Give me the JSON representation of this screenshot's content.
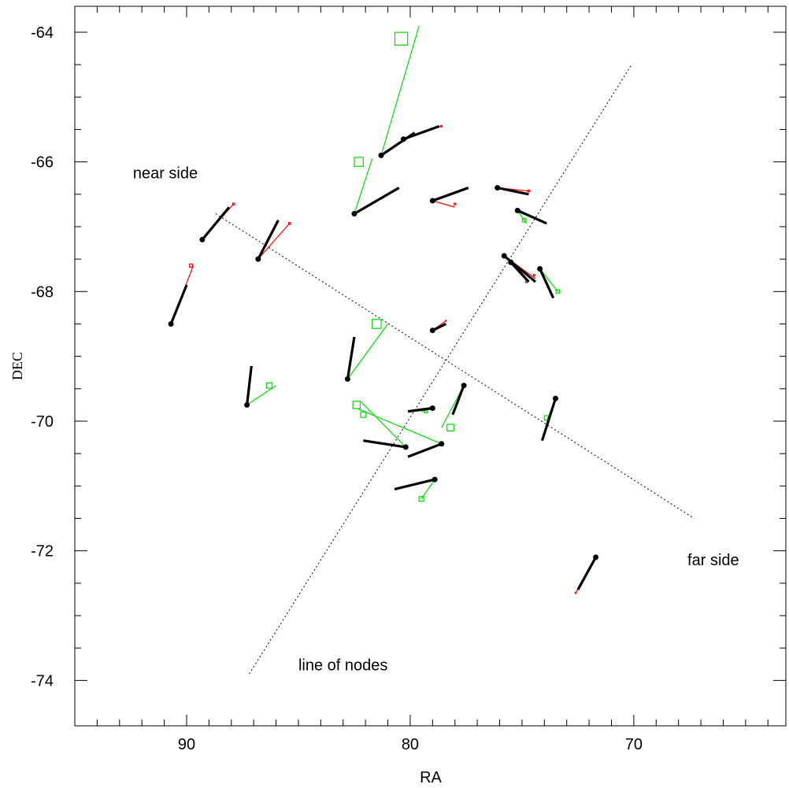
{
  "chart_data": {
    "type": "scatter",
    "title": "",
    "xlabel": "RA",
    "ylabel": "DEC",
    "xlim": [
      95.0,
      63.2
    ],
    "ylim": [
      -74.7,
      -63.6
    ],
    "x_ticks": [
      90,
      80,
      70
    ],
    "x_tick_labels": [
      "90",
      "80",
      "70"
    ],
    "y_ticks": [
      -64,
      -66,
      -68,
      -70,
      -72,
      -74
    ],
    "y_tick_labels": [
      "-64",
      "-66",
      "-68",
      "-70",
      "-72",
      "-74"
    ],
    "grid": false,
    "colors": {
      "vector": "#000000",
      "red": "#ff0000",
      "green": "#00dd00",
      "dotted": "#000000"
    },
    "annotations": [
      {
        "text": "near side",
        "x": 92.4,
        "y": -66.17
      },
      {
        "text": "far side",
        "x": 67.6,
        "y": -72.14
      },
      {
        "text": "line of nodes",
        "x": 85.0,
        "y": -73.76
      }
    ],
    "lines": [
      {
        "name": "line of nodes",
        "points": [
          [
            87.2,
            -73.9
          ],
          [
            70.1,
            -64.5
          ]
        ]
      },
      {
        "name": "perpendicular",
        "points": [
          [
            88.7,
            -66.8
          ],
          [
            67.3,
            -71.5
          ]
        ]
      }
    ],
    "objects": [
      {
        "pos": [
          90.7,
          -68.5
        ],
        "vec": [
          90.0,
          -67.9
        ],
        "red": {
          "end": [
            89.7,
            -67.6
          ],
          "box": [
            89.8,
            -67.6
          ],
          "size": 0.14
        }
      },
      {
        "pos": [
          89.3,
          -67.2
        ],
        "vec": [
          88.1,
          -66.7
        ],
        "red": {
          "end": [
            87.9,
            -66.65
          ],
          "box": [
            87.9,
            -66.65
          ],
          "size": 0.08
        }
      },
      {
        "pos": [
          86.8,
          -67.5
        ],
        "vec": [
          85.9,
          -66.9
        ],
        "red": {
          "end": [
            85.4,
            -66.95
          ],
          "box": [
            85.4,
            -66.95
          ],
          "size": 0.08
        }
      },
      {
        "pos": [
          87.3,
          -69.75
        ],
        "vec": [
          87.1,
          -69.15
        ],
        "green": {
          "end": [
            86.0,
            -69.45
          ],
          "box": [
            86.3,
            -69.45
          ],
          "size": 0.24
        }
      },
      {
        "pos": [
          82.8,
          -69.35
        ],
        "vec": [
          82.5,
          -68.7
        ],
        "green": {
          "end": [
            81.0,
            -68.5
          ],
          "box": [
            81.5,
            -68.5
          ],
          "size": 0.4
        }
      },
      {
        "pos": [
          82.5,
          -66.8
        ],
        "vec": [
          80.5,
          -66.4
        ],
        "green": {
          "end": [
            81.7,
            -65.95
          ],
          "box": [
            82.3,
            -66.0
          ],
          "size": 0.4
        }
      },
      {
        "pos": [
          81.3,
          -65.9
        ],
        "vec": [
          79.8,
          -65.55
        ],
        "green": {
          "end": [
            79.6,
            -63.9
          ],
          "box": [
            80.4,
            -64.1
          ],
          "size": 0.57
        }
      },
      {
        "pos": [
          80.3,
          -65.65
        ],
        "vec": [
          78.7,
          -65.45
        ],
        "red": {
          "end": [
            78.6,
            -65.45
          ],
          "box": [
            78.6,
            -65.45
          ],
          "size": 0.06
        }
      },
      {
        "pos": [
          79.0,
          -66.6
        ],
        "vec": [
          77.4,
          -66.4
        ],
        "red": {
          "end": [
            78.0,
            -66.7
          ],
          "box": [
            78.0,
            -66.65
          ],
          "size": 0.07
        }
      },
      {
        "pos": [
          79.0,
          -68.6
        ],
        "vec": [
          78.4,
          -68.5
        ],
        "red": {
          "end": [
            78.4,
            -68.45
          ],
          "box": [
            78.4,
            -68.45
          ],
          "size": 0.03
        }
      },
      {
        "pos": [
          80.2,
          -70.4
        ],
        "vec": [
          82.1,
          -70.3
        ],
        "green": {
          "end": [
            82.2,
            -69.7
          ],
          "box": [
            82.1,
            -69.9
          ],
          "size": 0.24
        }
      },
      {
        "pos": [
          78.6,
          -70.35
        ],
        "vec": [
          80.1,
          -70.55
        ],
        "green": {
          "end": [
            82.4,
            -69.8
          ],
          "box": [
            82.4,
            -69.75
          ],
          "size": 0.33
        }
      },
      {
        "pos": [
          79.0,
          -69.8
        ],
        "vec": [
          80.1,
          -69.85
        ],
        "green": {
          "end": [
            79.5,
            -69.85
          ],
          "box": [
            79.3,
            -69.85
          ],
          "size": 0.13
        }
      },
      {
        "pos": [
          77.6,
          -69.45
        ],
        "vec": [
          78.1,
          -69.9
        ],
        "green": {
          "end": [
            78.6,
            -70.1
          ],
          "box": [
            78.2,
            -70.1
          ],
          "size": 0.3
        }
      },
      {
        "pos": [
          78.9,
          -70.9
        ],
        "vec": [
          80.7,
          -71.05
        ],
        "green": {
          "end": [
            79.5,
            -71.2
          ],
          "box": [
            79.5,
            -71.2
          ],
          "size": 0.21
        }
      },
      {
        "pos": [
          76.1,
          -66.4
        ],
        "vec": [
          74.7,
          -66.5
        ],
        "red": {
          "end": [
            74.7,
            -66.45
          ],
          "box": [
            74.7,
            -66.45
          ],
          "size": 0.08
        }
      },
      {
        "pos": [
          75.2,
          -66.75
        ],
        "vec": [
          73.9,
          -66.95
        ],
        "green": {
          "end": [
            74.8,
            -66.95
          ],
          "box": [
            74.9,
            -66.9
          ],
          "size": 0.16
        }
      },
      {
        "pos": [
          75.8,
          -67.45
        ],
        "vec": [
          74.4,
          -67.85
        ],
        "red": {
          "end": [
            74.4,
            -67.8
          ],
          "box": [
            74.45,
            -67.75
          ],
          "size": 0.07
        }
      },
      {
        "pos": [
          75.5,
          -67.55
        ],
        "vec": [
          74.7,
          -67.85
        ],
        "red": {
          "end": [
            74.7,
            -67.85
          ],
          "box": [
            74.8,
            -67.85
          ],
          "size": 0.07
        }
      },
      {
        "pos": [
          74.2,
          -67.65
        ],
        "vec": [
          73.6,
          -68.1
        ],
        "green": {
          "end": [
            73.4,
            -68.0
          ],
          "box": [
            73.4,
            -68.0
          ],
          "size": 0.16
        }
      },
      {
        "pos": [
          73.5,
          -69.65
        ],
        "vec": [
          74.1,
          -70.3
        ],
        "green": {
          "end": [
            73.9,
            -70.0
          ],
          "box": [
            73.9,
            -69.95
          ],
          "size": 0.2
        }
      },
      {
        "pos": [
          71.7,
          -72.1
        ],
        "vec": [
          72.5,
          -72.6
        ],
        "red": {
          "end": [
            72.6,
            -72.65
          ],
          "box": [
            72.6,
            -72.65
          ],
          "size": 0.05
        }
      }
    ]
  }
}
